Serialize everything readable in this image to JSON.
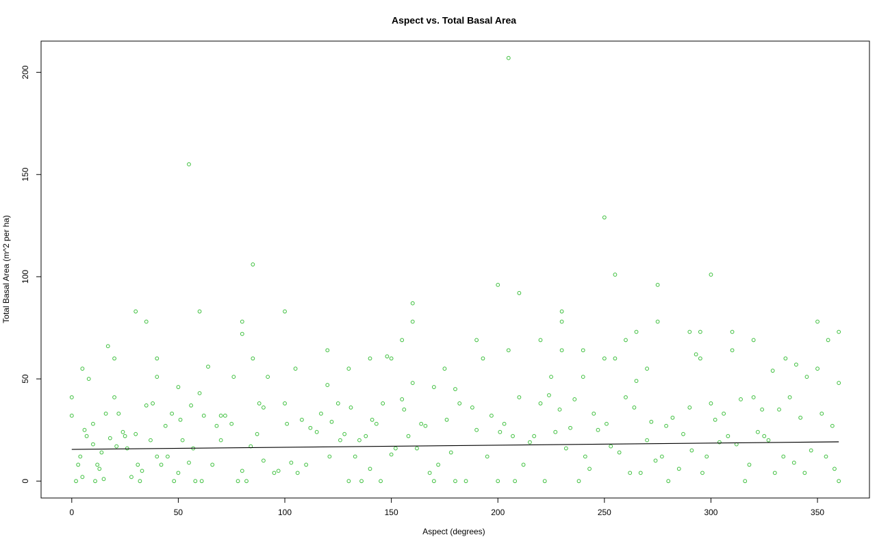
{
  "chart_data": {
    "type": "scatter",
    "title": "Aspect vs. Total Basal Area",
    "x_label": "Aspect (degrees)",
    "y_label": "Total Basal Area (m^2 per ha)",
    "color": "#3cbf3c",
    "xlim": [
      -14.4,
      374.4
    ],
    "ylim": [
      -8.28,
      215.28
    ],
    "xticks": [
      0,
      50,
      100,
      150,
      200,
      250,
      300,
      350
    ],
    "yticks": [
      0,
      50,
      100,
      150,
      200
    ],
    "x": [
      0,
      0,
      2,
      3,
      4,
      5,
      5,
      6,
      7,
      8,
      10,
      10,
      11,
      12,
      13,
      14,
      15,
      16,
      17,
      18,
      20,
      20,
      21,
      22,
      24,
      25,
      26,
      28,
      30,
      30,
      31,
      32,
      33,
      35,
      35,
      37,
      38,
      40,
      40,
      40,
      42,
      44,
      45,
      47,
      48,
      50,
      50,
      51,
      52,
      55,
      55,
      56,
      57,
      58,
      60,
      60,
      61,
      62,
      64,
      66,
      68,
      70,
      70,
      72,
      75,
      76,
      78,
      80,
      80,
      80,
      82,
      84,
      85,
      85,
      87,
      88,
      90,
      90,
      92,
      95,
      97,
      100,
      100,
      101,
      103,
      105,
      106,
      108,
      110,
      112,
      115,
      117,
      120,
      120,
      121,
      122,
      125,
      126,
      128,
      130,
      130,
      131,
      133,
      135,
      136,
      138,
      140,
      140,
      141,
      143,
      145,
      146,
      148,
      150,
      150,
      152,
      155,
      155,
      156,
      158,
      160,
      160,
      160,
      162,
      164,
      166,
      168,
      170,
      170,
      172,
      175,
      176,
      178,
      180,
      180,
      182,
      185,
      188,
      190,
      190,
      193,
      195,
      197,
      200,
      200,
      201,
      203,
      205,
      205,
      207,
      208,
      210,
      210,
      212,
      215,
      217,
      220,
      220,
      222,
      224,
      225,
      227,
      229,
      230,
      230,
      230,
      232,
      234,
      236,
      238,
      240,
      240,
      241,
      243,
      245,
      247,
      250,
      250,
      251,
      253,
      255,
      255,
      257,
      260,
      260,
      262,
      264,
      265,
      265,
      267,
      270,
      270,
      272,
      274,
      275,
      275,
      277,
      279,
      280,
      282,
      285,
      287,
      290,
      290,
      291,
      293,
      295,
      295,
      296,
      298,
      300,
      300,
      302,
      304,
      306,
      308,
      310,
      310,
      312,
      314,
      316,
      318,
      320,
      320,
      322,
      324,
      325,
      327,
      329,
      330,
      332,
      334,
      335,
      337,
      339,
      340,
      342,
      344,
      345,
      347,
      350,
      350,
      352,
      354,
      355,
      357,
      358,
      360,
      360,
      360
    ],
    "values": [
      41,
      32,
      0,
      8,
      12,
      55,
      2,
      25,
      22,
      50,
      28,
      18,
      0,
      8,
      6,
      14,
      1,
      33,
      66,
      21,
      60,
      41,
      17,
      33,
      24,
      22,
      16,
      2,
      83,
      23,
      8,
      0,
      5,
      78,
      37,
      20,
      38,
      60,
      51,
      12,
      8,
      27,
      12,
      33,
      0,
      46,
      4,
      30,
      20,
      155,
      9,
      37,
      16,
      0,
      83,
      43,
      0,
      32,
      56,
      8,
      27,
      32,
      20,
      32,
      28,
      51,
      0,
      78,
      72,
      5,
      0,
      17,
      106,
      60,
      23,
      38,
      36,
      10,
      51,
      4,
      5,
      83,
      38,
      28,
      9,
      55,
      4,
      30,
      8,
      26,
      24,
      33,
      64,
      47,
      12,
      29,
      38,
      20,
      23,
      55,
      0,
      36,
      12,
      20,
      0,
      22,
      60,
      6,
      30,
      28,
      0,
      38,
      61,
      60,
      13,
      16,
      69,
      40,
      35,
      22,
      87,
      78,
      48,
      16,
      28,
      27,
      4,
      46,
      0,
      8,
      55,
      30,
      14,
      0,
      45,
      38,
      0,
      36,
      69,
      25,
      60,
      12,
      32,
      96,
      0,
      24,
      28,
      207,
      64,
      22,
      0,
      92,
      41,
      8,
      19,
      22,
      69,
      38,
      0,
      42,
      51,
      24,
      35,
      83,
      78,
      64,
      16,
      26,
      40,
      0,
      64,
      51,
      12,
      6,
      33,
      25,
      129,
      60,
      28,
      17,
      101,
      60,
      14,
      69,
      41,
      4,
      36,
      73,
      49,
      4,
      55,
      20,
      29,
      10,
      96,
      78,
      12,
      27,
      0,
      31,
      6,
      23,
      73,
      36,
      15,
      62,
      73,
      60,
      4,
      12,
      101,
      38,
      30,
      19,
      33,
      22,
      73,
      64,
      18,
      40,
      0,
      8,
      69,
      41,
      24,
      35,
      22,
      20,
      54,
      4,
      35,
      12,
      60,
      41,
      9,
      57,
      31,
      4,
      51,
      15,
      78,
      55,
      33,
      12,
      69,
      27,
      6,
      73,
      48,
      0
    ],
    "fit": {
      "x": [
        0,
        360
      ],
      "values": [
        15.5,
        19.2
      ],
      "color": "#000000"
    }
  }
}
